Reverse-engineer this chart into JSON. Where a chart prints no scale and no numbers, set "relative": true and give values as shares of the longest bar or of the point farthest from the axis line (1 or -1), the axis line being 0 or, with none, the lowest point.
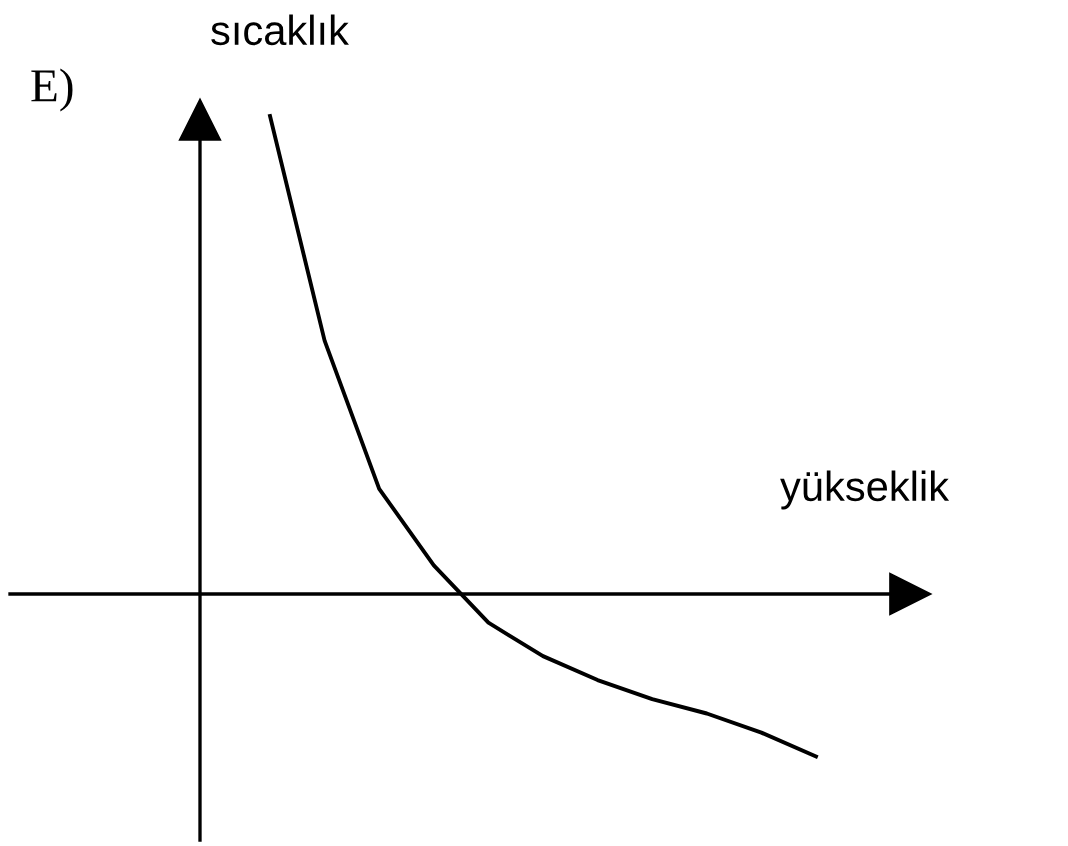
{
  "chart_data": {
    "type": "line",
    "relative": true,
    "xlabel": "yükseklik",
    "ylabel": "sıcaklık",
    "annotations": [
      "E)"
    ],
    "categories": [
      null,
      null,
      null,
      null,
      null,
      null,
      null,
      null,
      null,
      null,
      null
    ],
    "series": [
      {
        "color": "#000000",
        "values": [
          1,
          0.53,
          0.22,
          0.06,
          -0.06,
          -0.13,
          -0.18,
          -0.22,
          -0.25,
          -0.29,
          -0.34
        ]
      }
    ],
    "grid": false,
    "legend": false,
    "marker": "none",
    "line_style": "solid"
  }
}
